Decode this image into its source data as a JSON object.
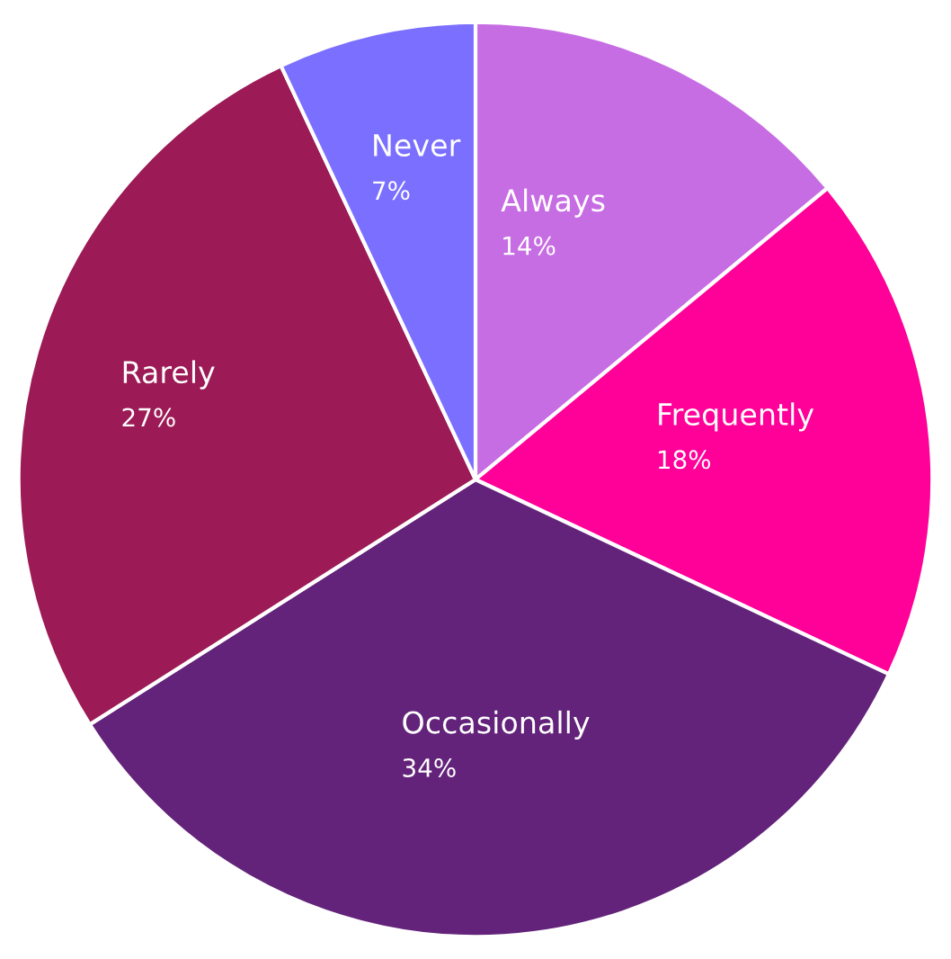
{
  "chart_data": {
    "type": "pie",
    "categories": [
      "Always",
      "Frequently",
      "Occasionally",
      "Rarely",
      "Never"
    ],
    "values": [
      14,
      18,
      34,
      27,
      7
    ],
    "value_labels": [
      "14%",
      "18%",
      "34%",
      "27%",
      "7%"
    ],
    "colors": [
      "#c76de3",
      "#ff0099",
      "#63237a",
      "#9c1a55",
      "#7b6fff"
    ],
    "legend": false
  }
}
